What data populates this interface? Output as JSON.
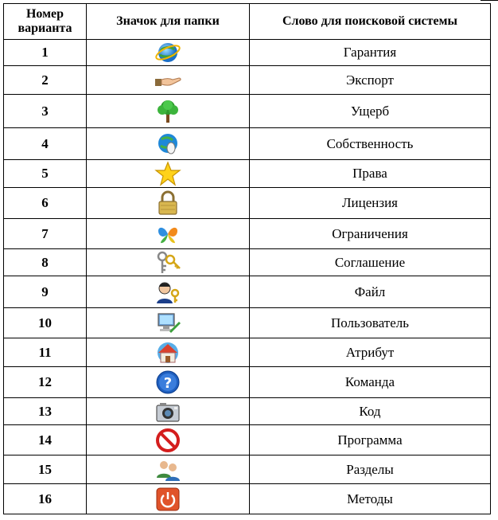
{
  "table": {
    "headers": [
      "Номер варианта",
      "Значок для папки",
      "Слово для поисковой системы"
    ],
    "rows": [
      {
        "num": "1",
        "icon": "ie-globe-icon",
        "word": "Гарантия"
      },
      {
        "num": "2",
        "icon": "sharing-hand-icon",
        "word": "Экспорт"
      },
      {
        "num": "3",
        "icon": "tree-icon",
        "word": "Ущерб"
      },
      {
        "num": "4",
        "icon": "globe-mouse-icon",
        "word": "Собственность"
      },
      {
        "num": "5",
        "icon": "star-icon",
        "word": "Права"
      },
      {
        "num": "6",
        "icon": "padlock-icon",
        "word": "Лицензия"
      },
      {
        "num": "7",
        "icon": "msn-butterfly-icon",
        "word": "Ограничения"
      },
      {
        "num": "8",
        "icon": "keys-icon",
        "word": "Соглашение"
      },
      {
        "num": "9",
        "icon": "user-key-icon",
        "word": "Файл"
      },
      {
        "num": "10",
        "icon": "computer-pencil-icon",
        "word": "Пользователь"
      },
      {
        "num": "11",
        "icon": "home-globe-icon",
        "word": "Атрибут"
      },
      {
        "num": "12",
        "icon": "help-question-icon",
        "word": "Команда"
      },
      {
        "num": "13",
        "icon": "camera-icon",
        "word": "Код"
      },
      {
        "num": "14",
        "icon": "prohibited-icon",
        "word": "Программа"
      },
      {
        "num": "15",
        "icon": "users-group-icon",
        "word": "Разделы"
      },
      {
        "num": "16",
        "icon": "power-button-icon",
        "word": "Методы"
      }
    ]
  }
}
